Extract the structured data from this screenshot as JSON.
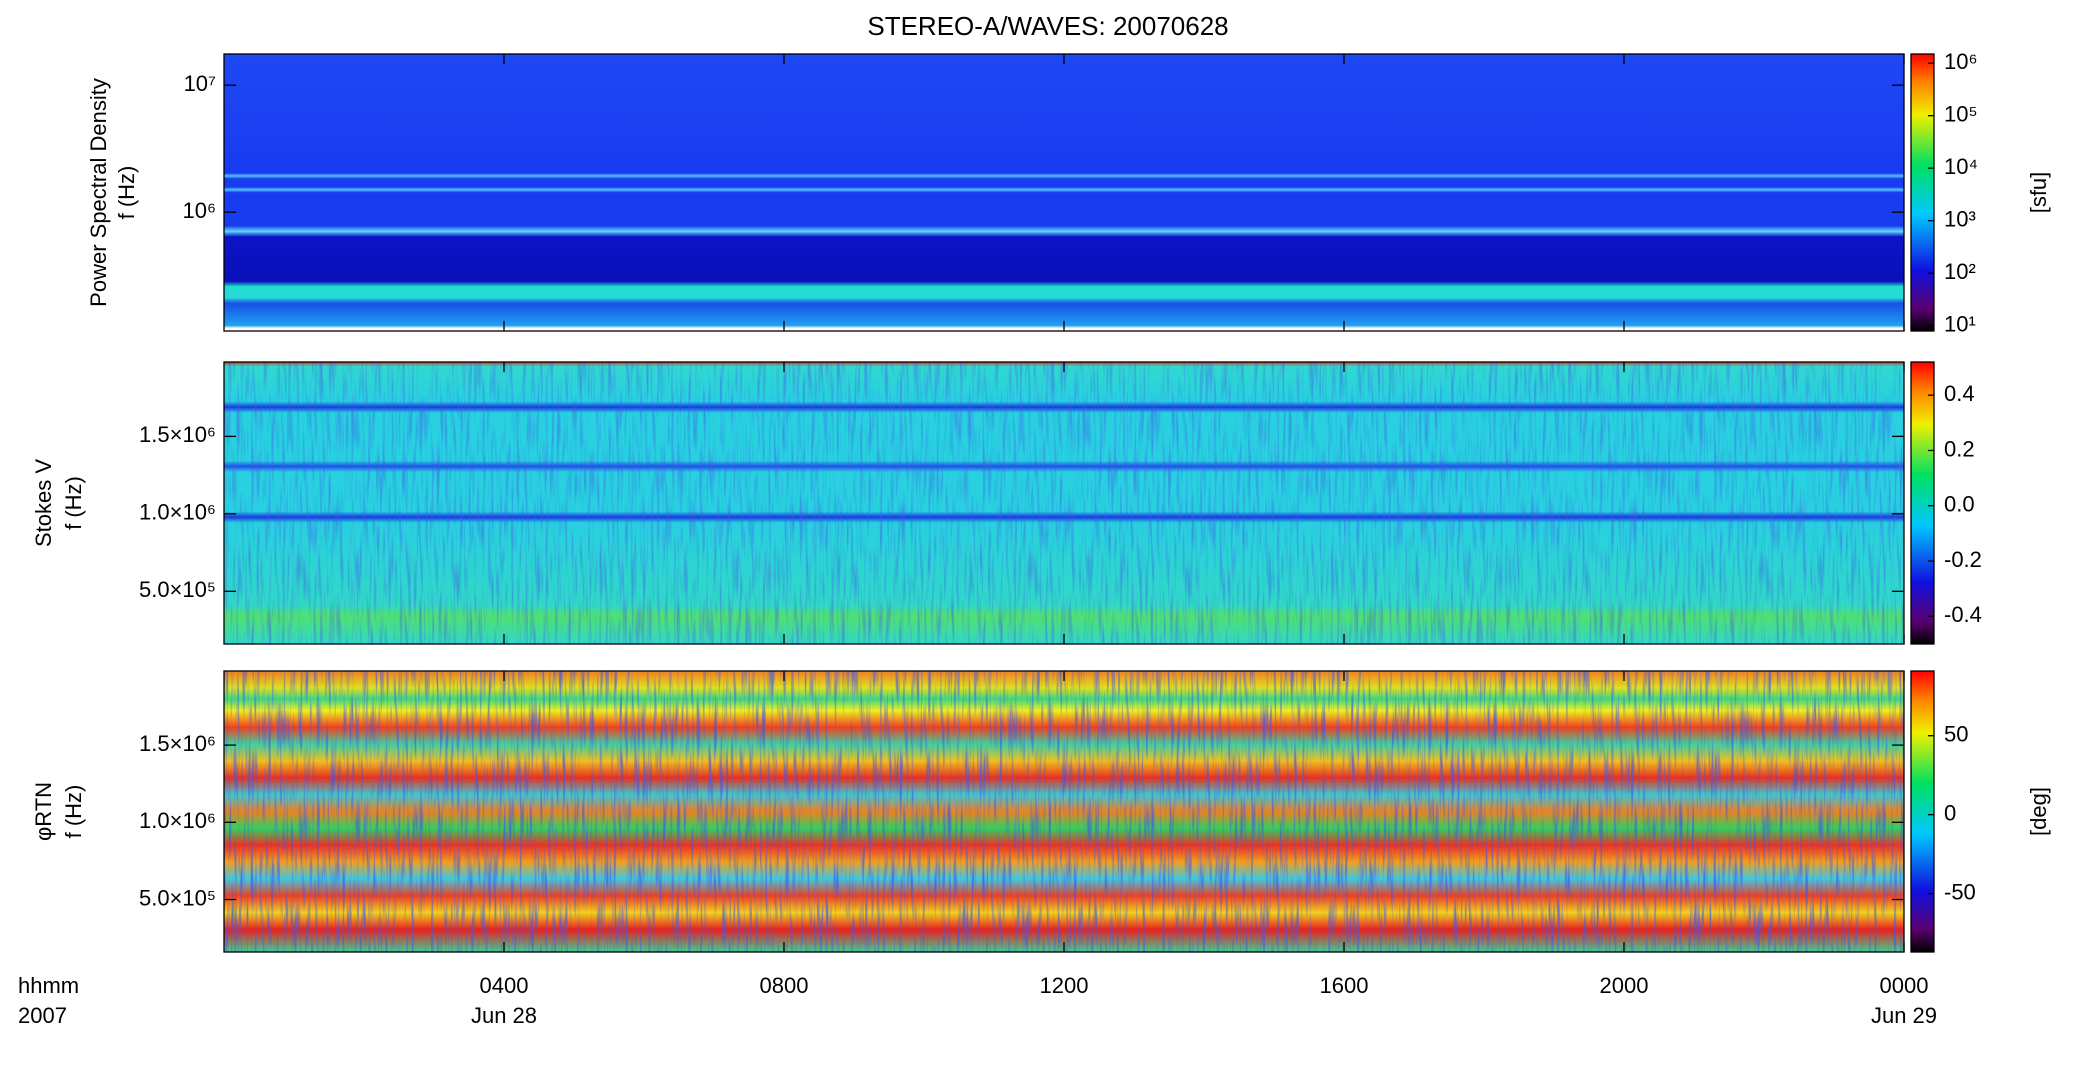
{
  "title": "STEREO-A/WAVES: 20070628",
  "x_axis": {
    "xlim": [
      0,
      24
    ],
    "xticks": [
      {
        "value": 4,
        "label": "0400"
      },
      {
        "value": 8,
        "label": "0800"
      },
      {
        "value": 12,
        "label": "1200"
      },
      {
        "value": 16,
        "label": "1600"
      },
      {
        "value": 20,
        "label": "2000"
      },
      {
        "value": 24,
        "label": "0000"
      }
    ],
    "format_label": "hhmm",
    "year_label": "2007",
    "dates": [
      {
        "value": 4,
        "label": "Jun 28"
      },
      {
        "value": 24,
        "label": "Jun 29"
      }
    ]
  },
  "chart_data": [
    {
      "type": "spectrogram",
      "ylabel": [
        "Power Spectral Density",
        "f (Hz)"
      ],
      "yscale": "log",
      "ylim": [
        116000,
        17600000
      ],
      "yticks": [
        {
          "value": 1000000,
          "label": "10⁶"
        },
        {
          "value": 10000000,
          "label": "10⁷"
        }
      ],
      "colorbar": {
        "scale": "log",
        "clim": [
          7.9,
          1500000
        ],
        "ticks": [
          {
            "value": 10,
            "label": "10¹"
          },
          {
            "value": 100,
            "label": "10²"
          },
          {
            "value": 1000,
            "label": "10³"
          },
          {
            "value": 10000,
            "label": "10⁴"
          },
          {
            "value": 100000,
            "label": "10⁵"
          },
          {
            "value": 1000000,
            "label": "10⁶"
          }
        ],
        "label": "[sfu]"
      }
    },
    {
      "type": "spectrogram",
      "ylabel": [
        "Stokes V",
        "f (Hz)"
      ],
      "yscale": "linear",
      "ylim": [
        160000,
        1980000
      ],
      "yticks": [
        {
          "value": 500000,
          "label": "5.0×10⁵"
        },
        {
          "value": 1000000,
          "label": "1.0×10⁶"
        },
        {
          "value": 1500000,
          "label": "1.5×10⁶"
        }
      ],
      "colorbar": {
        "scale": "linear",
        "clim": [
          -0.5,
          0.52
        ],
        "ticks": [
          -0.4,
          -0.2,
          {
            "value": 0,
            "label": "0.0"
          },
          0.2,
          0.4
        ]
      }
    },
    {
      "type": "spectrogram",
      "ylabel": [
        "φRTN",
        "f (Hz)"
      ],
      "yscale": "linear",
      "ylim": [
        160000,
        1980000
      ],
      "yticks": [
        {
          "value": 500000,
          "label": "5.0×10⁵"
        },
        {
          "value": 1000000,
          "label": "1.0×10⁶"
        },
        {
          "value": 1500000,
          "label": "1.5×10⁶"
        }
      ],
      "colorbar": {
        "scale": "linear",
        "clim": [
          -87,
          91
        ],
        "ticks": [
          -50,
          0,
          50
        ],
        "label": "[deg]"
      }
    }
  ]
}
